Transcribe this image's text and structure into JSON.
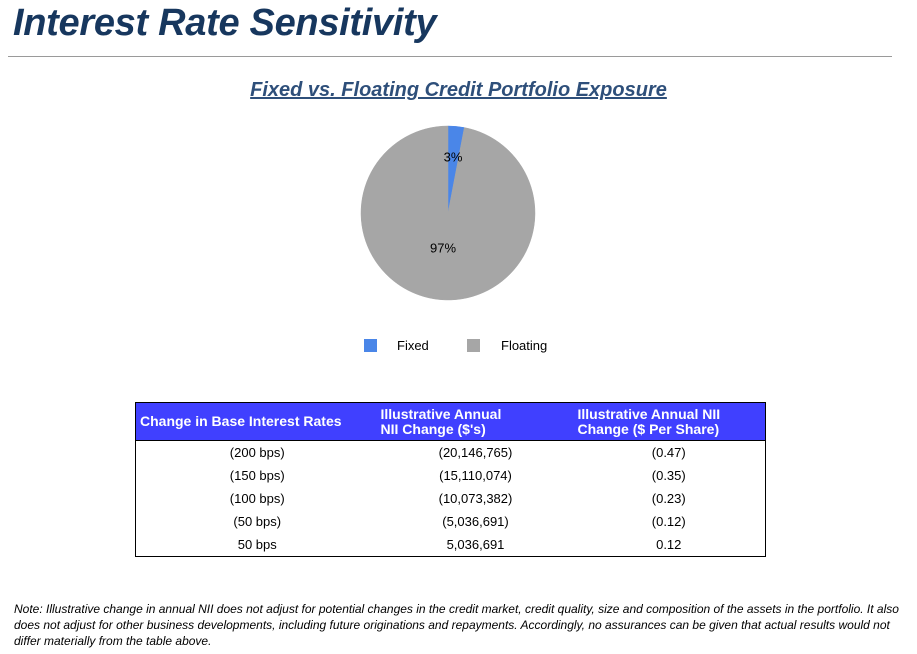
{
  "header": {
    "title": "Interest Rate Sensitivity"
  },
  "chart_data": {
    "type": "pie",
    "title": "Fixed vs. Floating Credit Portfolio Exposure",
    "categories": [
      "Fixed",
      "Floating"
    ],
    "values": [
      3,
      97
    ],
    "labels": [
      "3%",
      "97%"
    ],
    "colors": [
      "#4a86e8",
      "#a6a6a6"
    ],
    "legend_position": "bottom"
  },
  "table": {
    "headers": [
      "Change in Base Interest Rates",
      "Illustrative Annual NII Change ($'s)",
      "Illustrative Annual NII Change ($ Per Share)"
    ],
    "header_bg": "#4040ff",
    "rows": [
      [
        "(200 bps)",
        "(20,146,765)",
        "(0.47)"
      ],
      [
        "(150 bps)",
        "(15,110,074)",
        "(0.35)"
      ],
      [
        "(100 bps)",
        "(10,073,382)",
        "(0.23)"
      ],
      [
        "(50 bps)",
        "(5,036,691)",
        "(0.12)"
      ],
      [
        "50 bps",
        "5,036,691",
        "0.12"
      ]
    ]
  },
  "footnote": {
    "text": "Note:  Illustrative change in annual NII does not adjust for potential changes in the credit market, credit quality, size and composition of the assets in the portfolio. It also does not adjust for other business developments, including future originations and repayments. Accordingly, no assurances can be given that actual results would not differ materially from the table above."
  }
}
